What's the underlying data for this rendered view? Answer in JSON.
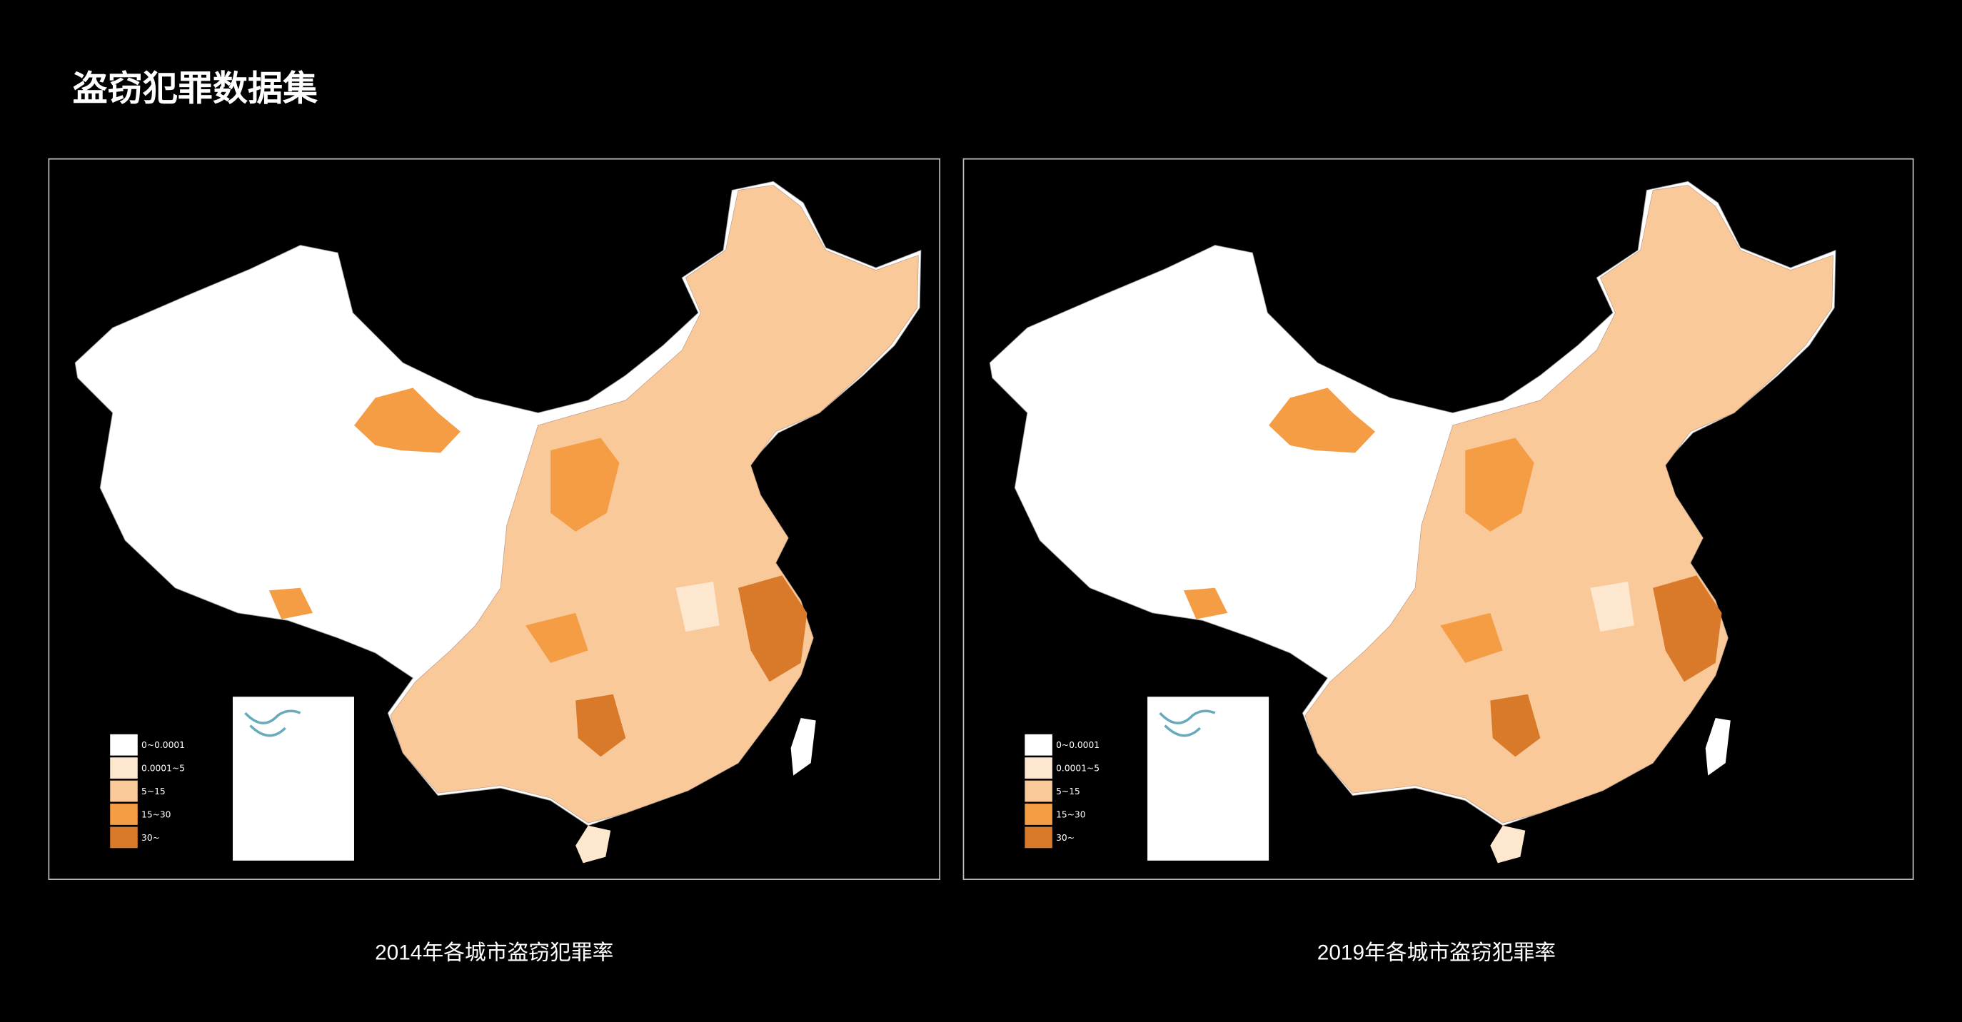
{
  "title": "盗窃犯罪数据集",
  "maps": [
    {
      "caption": "2014年各城市盗窃犯罪率",
      "legend": [
        {
          "label": "0~0.0001",
          "color": "#ffffff"
        },
        {
          "label": "0.0001~5",
          "color": "#fde7cf"
        },
        {
          "label": "5~15",
          "color": "#f9c99a"
        },
        {
          "label": "15~30",
          "color": "#f59d45"
        },
        {
          "label": "30~",
          "color": "#d9792a"
        }
      ]
    },
    {
      "caption": "2019年各城市盗窃犯罪率",
      "legend": [
        {
          "label": "0~0.0001",
          "color": "#ffffff"
        },
        {
          "label": "0.0001~5",
          "color": "#fde7cf"
        },
        {
          "label": "5~15",
          "color": "#f9c99a"
        },
        {
          "label": "15~30",
          "color": "#f59d45"
        },
        {
          "label": "30~",
          "color": "#d9792a"
        }
      ]
    }
  ]
}
